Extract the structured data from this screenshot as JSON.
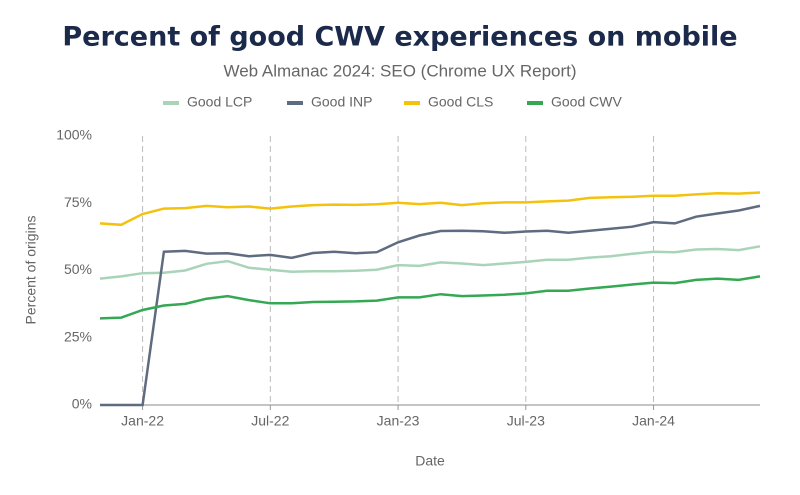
{
  "chart_data": {
    "type": "line",
    "title": "Percent of good CWV experiences on mobile",
    "subtitle": "Web Almanac 2024: SEO (Chrome UX Report)",
    "x_label": "Date",
    "y_label": "Percent of origins",
    "x": [
      "2021-11",
      "2021-12",
      "2022-01",
      "2022-02",
      "2022-03",
      "2022-04",
      "2022-05",
      "2022-06",
      "2022-07",
      "2022-08",
      "2022-09",
      "2022-10",
      "2022-11",
      "2022-12",
      "2023-01",
      "2023-02",
      "2023-03",
      "2023-04",
      "2023-05",
      "2023-06",
      "2023-07",
      "2023-08",
      "2023-09",
      "2023-10",
      "2023-11",
      "2023-12",
      "2024-01",
      "2024-02",
      "2024-03",
      "2024-04",
      "2024-05",
      "2024-06"
    ],
    "xticks": [
      {
        "value": "2022-01",
        "label": "Jan-22"
      },
      {
        "value": "2022-07",
        "label": "Jul-22"
      },
      {
        "value": "2023-01",
        "label": "Jan-23"
      },
      {
        "value": "2023-07",
        "label": "Jul-23"
      },
      {
        "value": "2024-01",
        "label": "Jan-24"
      }
    ],
    "ylim": [
      0,
      100
    ],
    "yticks": [
      {
        "value": 0,
        "label": "0%"
      },
      {
        "value": 25,
        "label": "25%"
      },
      {
        "value": 50,
        "label": "50%"
      },
      {
        "value": 75,
        "label": "75%"
      },
      {
        "value": 100,
        "label": "100%"
      }
    ],
    "grid": "x",
    "legend": "top",
    "series": [
      {
        "name": "Good LCP",
        "color": "#a9d4b9",
        "values": [
          47,
          47.8,
          49,
          49.2,
          50,
          52.5,
          53.5,
          51,
          50.3,
          49.5,
          49.7,
          49.7,
          49.9,
          50.3,
          52,
          51.7,
          53,
          52.6,
          52,
          52.6,
          53.2,
          54,
          54,
          54.8,
          55.3,
          56.2,
          57,
          56.8,
          57.8,
          58,
          57.6,
          59
        ]
      },
      {
        "name": "Good INP",
        "color": "#5f6b80",
        "values": [
          0,
          0,
          0,
          57,
          57.3,
          56.3,
          56.4,
          55.3,
          55.8,
          54.7,
          56.5,
          57,
          56.4,
          56.8,
          60.5,
          63,
          64.7,
          64.8,
          64.6,
          64,
          64.5,
          64.8,
          64,
          64.8,
          65.5,
          66.3,
          68,
          67.5,
          70,
          71.2,
          72.3,
          74
        ]
      },
      {
        "name": "Good CLS",
        "color": "#f4c20d",
        "values": [
          67.5,
          67,
          71,
          73,
          73.2,
          74,
          73.5,
          73.8,
          73,
          73.8,
          74.3,
          74.5,
          74.4,
          74.6,
          75.2,
          74.7,
          75.2,
          74.3,
          75,
          75.3,
          75.3,
          75.7,
          76,
          77,
          77.2,
          77.4,
          77.8,
          77.8,
          78.3,
          78.7,
          78.6,
          79
        ]
      },
      {
        "name": "Good CWV",
        "color": "#34a853",
        "values": [
          32.2,
          32.5,
          35.3,
          37,
          37.6,
          39.5,
          40.5,
          39,
          37.8,
          37.8,
          38.3,
          38.4,
          38.5,
          38.8,
          40,
          40,
          41.2,
          40.5,
          40.7,
          41,
          41.5,
          42.5,
          42.5,
          43.3,
          44,
          44.8,
          45.5,
          45.3,
          46.5,
          47,
          46.5,
          47.8
        ]
      }
    ]
  }
}
